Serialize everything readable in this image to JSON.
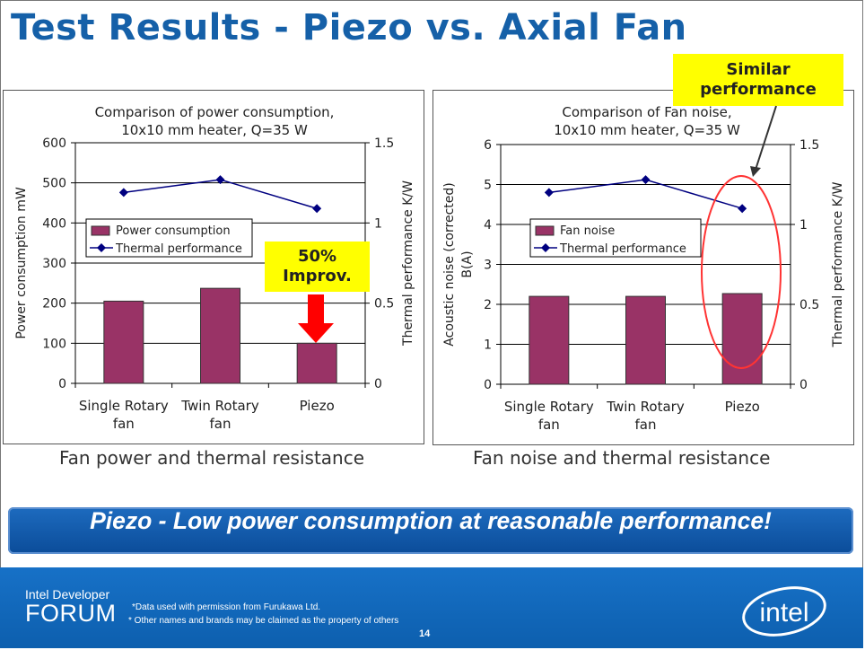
{
  "slide": {
    "title": "Test Results - Piezo vs. Axial Fan",
    "banner": "Piezo - Low power consumption at reasonable performance!",
    "left_caption": "Fan power and thermal resistance",
    "right_caption": "Fan noise and thermal resistance",
    "callout_improvement": [
      "50%",
      "Improv."
    ],
    "callout_similar": [
      "Similar",
      "performance"
    ],
    "footer": {
      "brand_small": "Intel Developer",
      "brand_big": "FORUM",
      "note1": "*Data  used with permission from Furukawa Ltd.",
      "note2": "* Other names and brands may be claimed as the property of others",
      "page_number": "14",
      "logo_text": "intel"
    },
    "colors": {
      "title": "#1560a8",
      "bar": "#993366",
      "line": "#000080",
      "callout": "#ffff00",
      "arrow": "#ff0000",
      "circle": "#ff3333",
      "banner": "#0b4c99"
    }
  },
  "chart_data": [
    {
      "type": "bar",
      "title": [
        "Comparison of power consumption,",
        "10x10 mm heater, Q=35 W"
      ],
      "categories": [
        [
          "Single Rotary",
          "fan"
        ],
        [
          "Twin Rotary",
          "fan"
        ],
        [
          "Piezo"
        ]
      ],
      "ylabel": "Power consumption mW",
      "ylabel_lines": [
        "Power consumption mW"
      ],
      "y2label": "Thermal performance K/W",
      "ylim": [
        0,
        600
      ],
      "yticks": [
        "0",
        "100",
        "200",
        "300",
        "400",
        "500",
        "600"
      ],
      "y2lim": [
        0,
        1.5
      ],
      "y2ticks": [
        "0",
        "0.5",
        "1",
        "1.5"
      ],
      "series": [
        {
          "name": "Power consumption",
          "kind": "bar",
          "axis": "left",
          "values": [
            205,
            237,
            100
          ]
        },
        {
          "name": "Thermal performance",
          "kind": "line",
          "axis": "right",
          "values": [
            1.19,
            1.27,
            1.09
          ]
        }
      ],
      "legend": "upper-left"
    },
    {
      "type": "bar",
      "title": [
        "Comparison of Fan noise,",
        "10x10 mm heater, Q=35 W"
      ],
      "categories": [
        [
          "Single Rotary",
          "fan"
        ],
        [
          "Twin Rotary",
          "fan"
        ],
        [
          "Piezo"
        ]
      ],
      "ylabel": "Acoustic noise (corrected) B(A)",
      "ylabel_lines": [
        "Acoustic noise (corrected)",
        "B(A)"
      ],
      "y2label": "Thermal performance K/W",
      "ylim": [
        0,
        6
      ],
      "yticks": [
        "0",
        "1",
        "2",
        "3",
        "4",
        "5",
        "6"
      ],
      "y2lim": [
        0,
        1.5
      ],
      "y2ticks": [
        "0",
        "0.5",
        "1",
        "1.5"
      ],
      "series": [
        {
          "name": "Fan noise",
          "kind": "bar",
          "axis": "left",
          "values": [
            2.2,
            2.2,
            2.27
          ]
        },
        {
          "name": "Thermal performance",
          "kind": "line",
          "axis": "right",
          "values": [
            1.2,
            1.28,
            1.1
          ]
        }
      ],
      "legend": "upper-left"
    }
  ]
}
